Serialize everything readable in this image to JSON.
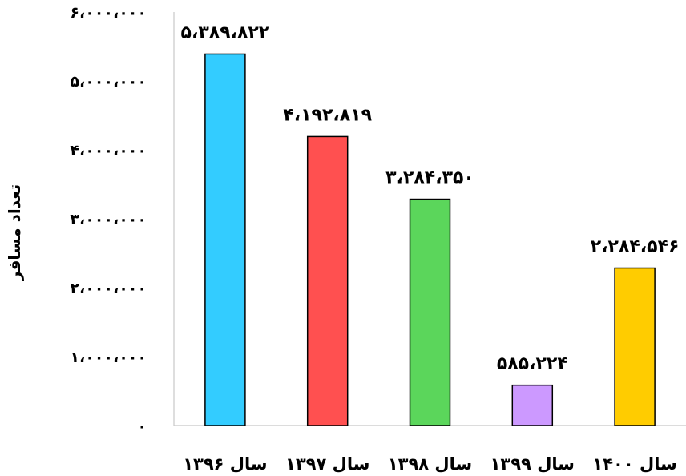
{
  "chart_data": {
    "type": "bar",
    "title": "",
    "ylabel": "تعداد مسافر",
    "xlabel": "",
    "ylim": [
      0,
      6000000
    ],
    "grid": false,
    "legend": "none",
    "categories": [
      "سال ۱۳۹۶",
      "سال ۱۳۹۷",
      "سال ۱۳۹۸",
      "سال ۱۳۹۹",
      "سال ۱۴۰۰"
    ],
    "values": [
      5389822,
      4192819,
      3284350,
      585224,
      2284546
    ],
    "data_labels": [
      "۵،۳۸۹،۸۲۲",
      "۴،۱۹۲،۸۱۹",
      "۳،۲۸۴،۳۵۰",
      "۵۸۵،۲۲۴",
      "۲،۲۸۴،۵۴۶"
    ],
    "colors": [
      "#33ccff",
      "#ff5050",
      "#5bd65b",
      "#cc99ff",
      "#ffcc00"
    ],
    "yticks": [
      0,
      1000000,
      2000000,
      3000000,
      4000000,
      5000000,
      6000000
    ],
    "ytick_labels": [
      "۰",
      "۱،۰۰۰،۰۰۰",
      "۲،۰۰۰،۰۰۰",
      "۳،۰۰۰،۰۰۰",
      "۴،۰۰۰،۰۰۰",
      "۵،۰۰۰،۰۰۰",
      "۶،۰۰۰،۰۰۰"
    ]
  }
}
